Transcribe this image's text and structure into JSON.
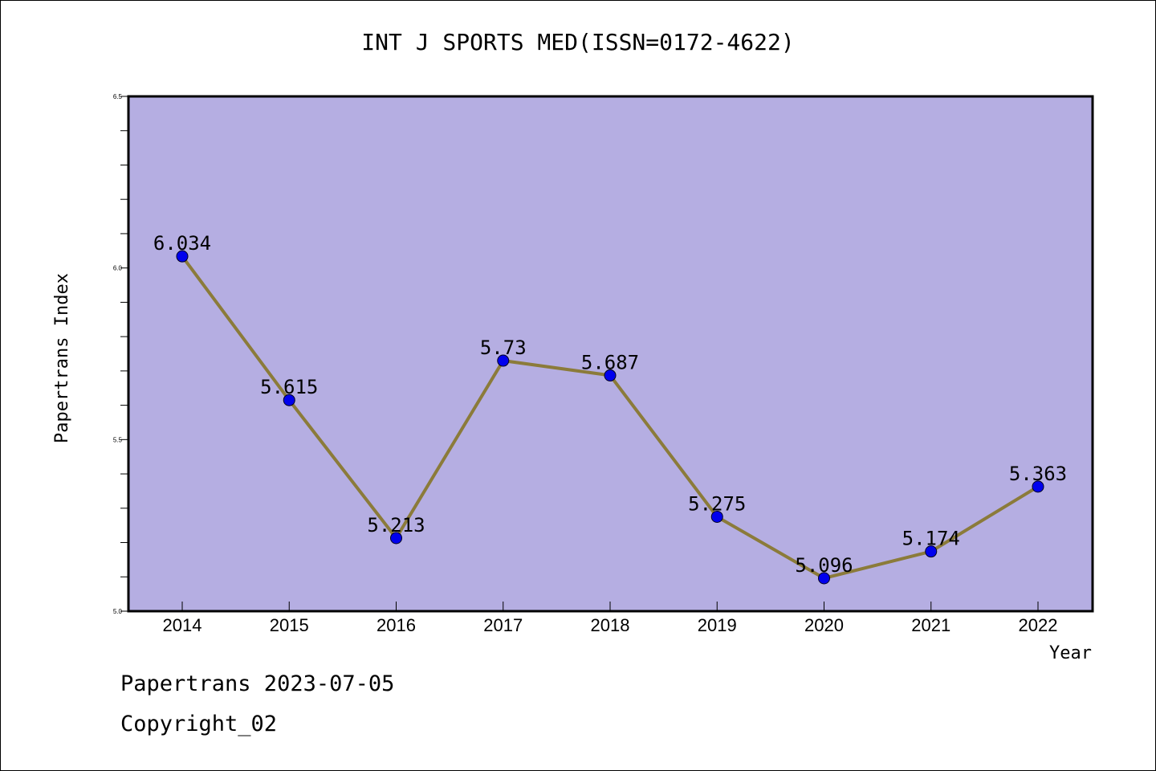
{
  "page": {
    "title": "INT J SPORTS MED(ISSN=0172-4622)",
    "footer_line1": "Papertrans 2023-07-05",
    "footer_line2": "Copyright_02"
  },
  "chart_data": {
    "type": "line",
    "title": "INT J SPORTS MED(ISSN=0172-4622)",
    "xlabel": "Year",
    "ylabel": "Papertrans Index",
    "categories": [
      "2014",
      "2015",
      "2016",
      "2017",
      "2018",
      "2019",
      "2020",
      "2021",
      "2022"
    ],
    "values": [
      6.034,
      5.615,
      5.213,
      5.73,
      5.687,
      5.275,
      5.096,
      5.174,
      5.363
    ],
    "data_labels": [
      "6.034",
      "5.615",
      "5.213",
      "5.73",
      "5.687",
      "5.275",
      "5.096",
      "5.174",
      "5.363"
    ],
    "ylim": [
      5.0,
      6.5
    ],
    "yticks": [
      "5.0",
      "5.5",
      "6.0",
      "6.5"
    ],
    "grid": false,
    "colors": {
      "plot_background": "#b5aee2",
      "line": "#8b7b3a",
      "marker": "#0000ee"
    }
  }
}
